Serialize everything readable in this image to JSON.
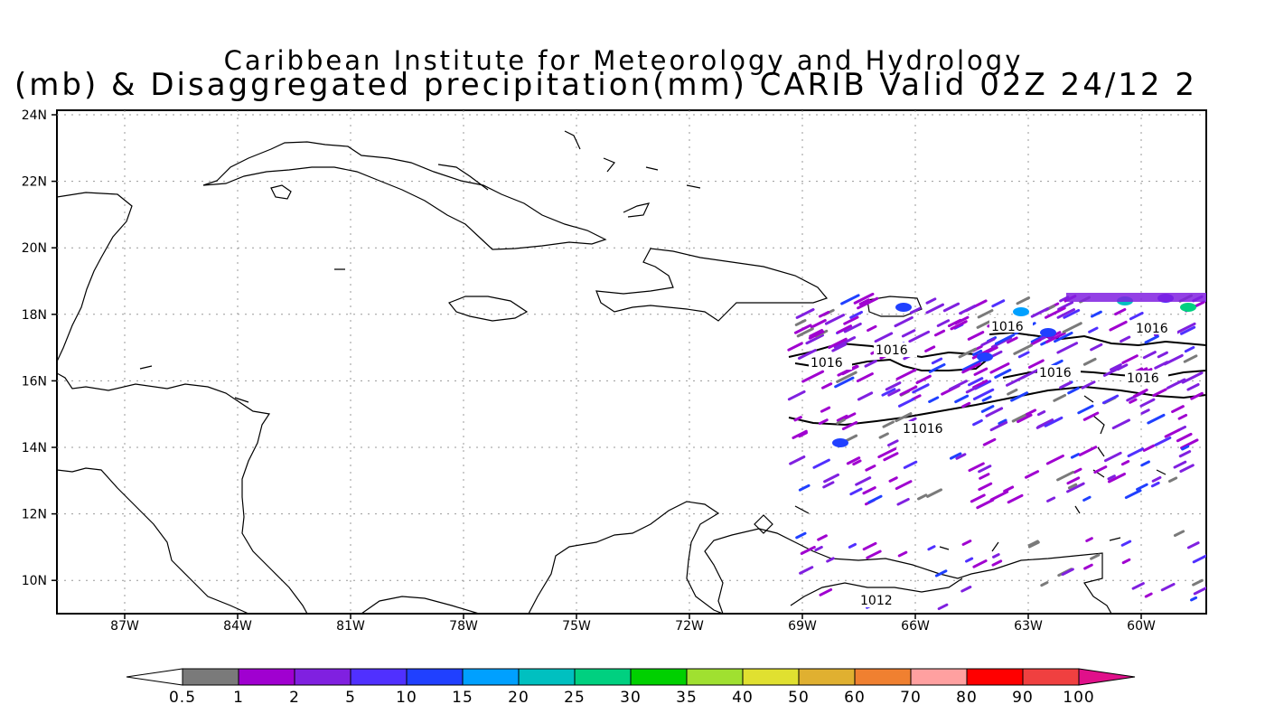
{
  "title": {
    "line1": "Caribbean Institute for Meteorology and Hydrology",
    "line2": "(mb) & Disaggregated precipitation(mm) CARIB Valid 02Z 24/12 2"
  },
  "map": {
    "lat_labels": [
      "24N",
      "22N",
      "20N",
      "18N",
      "16N",
      "14N",
      "12N",
      "10N"
    ],
    "lon_labels": [
      "87W",
      "84W",
      "81W",
      "78W",
      "75W",
      "72W",
      "69W",
      "66W",
      "63W",
      "60W"
    ],
    "contour_labels": [
      "1016",
      "1016",
      "1016",
      "1016",
      "1016",
      "1016",
      "11016",
      "1012"
    ],
    "grid": "dotted"
  },
  "colorbar": {
    "labels": [
      "0.5",
      "1",
      "2",
      "5",
      "10",
      "15",
      "20",
      "25",
      "30",
      "35",
      "40",
      "50",
      "60",
      "70",
      "80",
      "90",
      "100"
    ],
    "colors": [
      "#7a7a7a",
      "#a000d0",
      "#8020e0",
      "#5030ff",
      "#2040ff",
      "#00a0ff",
      "#00c0c0",
      "#00d080",
      "#00d000",
      "#a0e030",
      "#e0e030",
      "#e0b030",
      "#f08030",
      "#ffa0a0",
      "#ff0000",
      "#f04040"
    ],
    "lower_arrow_color": "#ffffff",
    "upper_arrow_color": "#e0108a"
  }
}
